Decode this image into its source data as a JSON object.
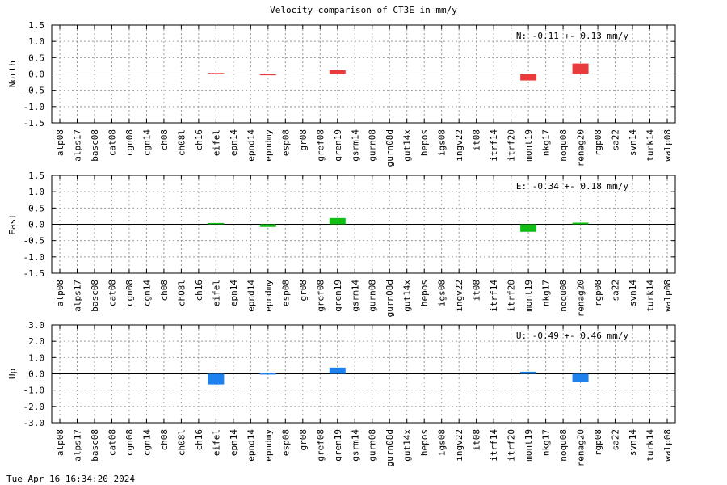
{
  "title": "Velocity comparison of CT3E in mm/y",
  "timestamp": "Tue Apr 16 16:34:20 2024",
  "chart_data": [
    {
      "type": "bar",
      "ylabel": "North",
      "annotation": "N:  -0.11 +-  0.13 mm/y",
      "color": "#e83b3b",
      "ylim": [
        -1.5,
        1.5
      ],
      "yticks": [
        -1.5,
        -1.0,
        -0.5,
        0.0,
        0.5,
        1.0,
        1.5
      ],
      "ytick_labels": [
        "-1.5",
        "-1.0",
        "-0.5",
        "0.0",
        "0.5",
        "1.0",
        "1.5"
      ],
      "grid": true,
      "categories": [
        "alp08",
        "alps17",
        "basc08",
        "cat08",
        "cgn08",
        "cgn14",
        "ch08",
        "ch08l",
        "ch16",
        "eifel",
        "epn14",
        "epnd14",
        "epndmy",
        "esp08",
        "gr08",
        "gref08",
        "gren19",
        "gsrm14",
        "gurn08",
        "gurn08d",
        "gut14x",
        "hepos",
        "igs08",
        "ingv22",
        "it08",
        "itrf14",
        "itrf20",
        "mont19",
        "nkg17",
        "noqu08",
        "renag20",
        "rgp08",
        "sa22",
        "svn14",
        "turk14",
        "walp08"
      ],
      "values": [
        null,
        null,
        null,
        null,
        null,
        null,
        null,
        null,
        null,
        0.03,
        null,
        null,
        -0.04,
        null,
        null,
        null,
        0.12,
        null,
        null,
        null,
        null,
        null,
        null,
        null,
        null,
        null,
        null,
        -0.2,
        null,
        null,
        0.32,
        null,
        null,
        null,
        null,
        null
      ]
    },
    {
      "type": "bar",
      "ylabel": "East",
      "annotation": "E:  -0.34 +-  0.18 mm/y",
      "color": "#13bd13",
      "ylim": [
        -1.5,
        1.5
      ],
      "yticks": [
        -1.5,
        -1.0,
        -0.5,
        0.0,
        0.5,
        1.0,
        1.5
      ],
      "ytick_labels": [
        "-1.5",
        "-1.0",
        "-0.5",
        "0.0",
        "0.5",
        "1.0",
        "1.5"
      ],
      "grid": true,
      "categories": [
        "alp08",
        "alps17",
        "basc08",
        "cat08",
        "cgn08",
        "cgn14",
        "ch08",
        "ch08l",
        "ch16",
        "eifel",
        "epn14",
        "epnd14",
        "epndmy",
        "esp08",
        "gr08",
        "gref08",
        "gren19",
        "gsrm14",
        "gurn08",
        "gurn08d",
        "gut14x",
        "hepos",
        "igs08",
        "ingv22",
        "it08",
        "itrf14",
        "itrf20",
        "mont19",
        "nkg17",
        "noqu08",
        "renag20",
        "rgp08",
        "sa22",
        "svn14",
        "turk14",
        "walp08"
      ],
      "values": [
        null,
        null,
        null,
        null,
        null,
        null,
        null,
        null,
        null,
        0.04,
        null,
        null,
        -0.08,
        null,
        null,
        null,
        0.19,
        null,
        null,
        null,
        null,
        null,
        null,
        null,
        null,
        null,
        null,
        -0.23,
        null,
        null,
        0.05,
        null,
        null,
        null,
        null,
        null
      ]
    },
    {
      "type": "bar",
      "ylabel": "Up",
      "annotation": "U:  -0.49 +-  0.46 mm/y",
      "color": "#1e82ee",
      "ylim": [
        -3.0,
        3.0
      ],
      "yticks": [
        -3.0,
        -2.0,
        -1.0,
        0.0,
        1.0,
        2.0,
        3.0
      ],
      "ytick_labels": [
        "-3.0",
        "-2.0",
        "-1.0",
        "0.0",
        "1.0",
        "2.0",
        "3.0"
      ],
      "grid": true,
      "categories": [
        "alp08",
        "alps17",
        "basc08",
        "cat08",
        "cgn08",
        "cgn14",
        "ch08",
        "ch08l",
        "ch16",
        "eifel",
        "epn14",
        "epnd14",
        "epndmy",
        "esp08",
        "gr08",
        "gref08",
        "gren19",
        "gsrm14",
        "gurn08",
        "gurn08d",
        "gut14x",
        "hepos",
        "igs08",
        "ingv22",
        "it08",
        "itrf14",
        "itrf20",
        "mont19",
        "nkg17",
        "noqu08",
        "renag20",
        "rgp08",
        "sa22",
        "svn14",
        "turk14",
        "walp08"
      ],
      "values": [
        null,
        null,
        null,
        null,
        null,
        null,
        null,
        null,
        null,
        -0.65,
        null,
        null,
        0.03,
        null,
        null,
        null,
        0.38,
        null,
        null,
        null,
        null,
        null,
        null,
        null,
        null,
        null,
        null,
        0.13,
        null,
        null,
        -0.48,
        null,
        null,
        null,
        null,
        null
      ]
    }
  ]
}
